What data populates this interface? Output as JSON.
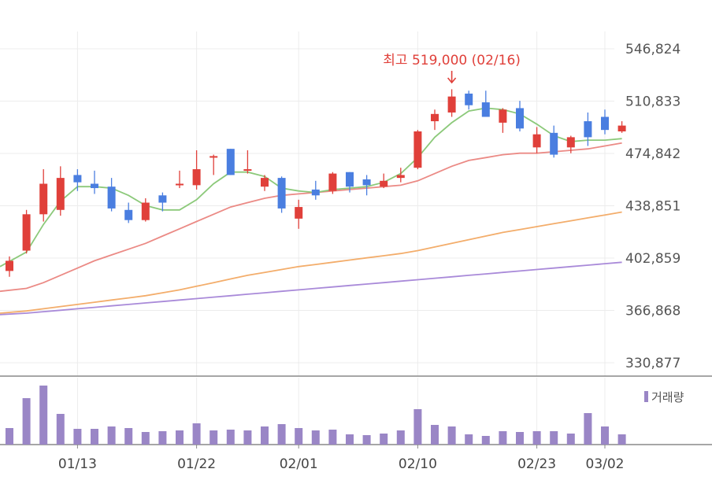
{
  "colors": {
    "up": "#e0403a",
    "down": "#4a7ee0",
    "ma5": "#8cc97a",
    "ma20": "#eb8a85",
    "ma60": "#f3ad6b",
    "ma120": "#a98ad9",
    "volume": "#9a86c6",
    "grid": "#ececec",
    "axis": "#888888"
  },
  "chart_data": {
    "type": "candlestick",
    "y_ticks": [
      "546,824",
      "510,833",
      "474,842",
      "438,851",
      "402,859",
      "366,868",
      "330,877"
    ],
    "y_tick_values": [
      546824,
      510833,
      474842,
      438851,
      402859,
      366868,
      330877
    ],
    "ylim": [
      326000,
      552000
    ],
    "x_ticks": [
      {
        "label": "01/13",
        "index": 4
      },
      {
        "label": "01/22",
        "index": 11
      },
      {
        "label": "02/01",
        "index": 17
      },
      {
        "label": "02/10",
        "index": 24
      },
      {
        "label": "02/23",
        "index": 31
      },
      {
        "label": "03/02",
        "index": 35
      }
    ],
    "annotation": {
      "text": "최고 519,000 (02/16)",
      "index": 26,
      "value": 519000
    },
    "volume_legend": "거래량",
    "candles": [
      {
        "o": 394000,
        "h": 404000,
        "l": 390000,
        "c": 401000
      },
      {
        "o": 408000,
        "h": 436000,
        "l": 406000,
        "c": 433000
      },
      {
        "o": 433000,
        "h": 464000,
        "l": 428000,
        "c": 454000
      },
      {
        "o": 436000,
        "h": 466000,
        "l": 432000,
        "c": 458000
      },
      {
        "o": 460000,
        "h": 464000,
        "l": 449000,
        "c": 455000
      },
      {
        "o": 454000,
        "h": 463000,
        "l": 447000,
        "c": 451000
      },
      {
        "o": 452000,
        "h": 458000,
        "l": 435000,
        "c": 437000
      },
      {
        "o": 436000,
        "h": 441000,
        "l": 427000,
        "c": 429000
      },
      {
        "o": 429000,
        "h": 444000,
        "l": 428000,
        "c": 441000
      },
      {
        "o": 446000,
        "h": 448000,
        "l": 435000,
        "c": 441000
      },
      {
        "o": 453000,
        "h": 463000,
        "l": 451000,
        "c": 454000
      },
      {
        "o": 453000,
        "h": 477000,
        "l": 450000,
        "c": 464000
      },
      {
        "o": 472000,
        "h": 474000,
        "l": 460000,
        "c": 473000
      },
      {
        "o": 478000,
        "h": 478000,
        "l": 460000,
        "c": 460000
      },
      {
        "o": 463000,
        "h": 477000,
        "l": 461000,
        "c": 464000
      },
      {
        "o": 452000,
        "h": 460000,
        "l": 449000,
        "c": 458000
      },
      {
        "o": 458000,
        "h": 459000,
        "l": 434000,
        "c": 437000
      },
      {
        "o": 430000,
        "h": 443000,
        "l": 423000,
        "c": 438000
      },
      {
        "o": 450000,
        "h": 456000,
        "l": 443000,
        "c": 446000
      },
      {
        "o": 449000,
        "h": 462000,
        "l": 447000,
        "c": 461000
      },
      {
        "o": 462000,
        "h": 462000,
        "l": 448000,
        "c": 452000
      },
      {
        "o": 457000,
        "h": 460000,
        "l": 446000,
        "c": 453000
      },
      {
        "o": 452000,
        "h": 461000,
        "l": 451000,
        "c": 456000
      },
      {
        "o": 458000,
        "h": 465000,
        "l": 455000,
        "c": 460000
      },
      {
        "o": 465000,
        "h": 491000,
        "l": 464000,
        "c": 490000
      },
      {
        "o": 497000,
        "h": 505000,
        "l": 491000,
        "c": 502000
      },
      {
        "o": 503000,
        "h": 519000,
        "l": 500000,
        "c": 514000
      },
      {
        "o": 516000,
        "h": 518000,
        "l": 505000,
        "c": 508000
      },
      {
        "o": 510000,
        "h": 518000,
        "l": 500000,
        "c": 500000
      },
      {
        "o": 496000,
        "h": 506000,
        "l": 489000,
        "c": 505000
      },
      {
        "o": 506000,
        "h": 511000,
        "l": 490000,
        "c": 492000
      },
      {
        "o": 479000,
        "h": 493000,
        "l": 475000,
        "c": 488000
      },
      {
        "o": 489000,
        "h": 494000,
        "l": 472000,
        "c": 474000
      },
      {
        "o": 479000,
        "h": 487000,
        "l": 475000,
        "c": 486000
      },
      {
        "o": 497000,
        "h": 503000,
        "l": 480000,
        "c": 486000
      },
      {
        "o": 500000,
        "h": 505000,
        "l": 488000,
        "c": 491000
      },
      {
        "o": 490000,
        "h": 497000,
        "l": 489000,
        "c": 494000
      }
    ],
    "ma5": [
      397000,
      407000,
      426000,
      442000,
      452000,
      452000,
      451000,
      446000,
      439000,
      436000,
      436000,
      443000,
      454000,
      462000,
      462000,
      459000,
      451000,
      449000,
      448000,
      450000,
      451000,
      452000,
      455000,
      461000,
      472000,
      486000,
      496000,
      504000,
      506000,
      505000,
      502000,
      495000,
      487000,
      483000,
      484000,
      484000,
      485000
    ],
    "ma20": [
      380000,
      382000,
      386000,
      391000,
      396000,
      401000,
      405000,
      409000,
      413000,
      418000,
      423000,
      428000,
      433000,
      438000,
      441000,
      444000,
      446000,
      447000,
      448000,
      449000,
      450000,
      451000,
      452000,
      453000,
      456000,
      461000,
      466000,
      470000,
      472000,
      474000,
      475000,
      475000,
      476000,
      477000,
      478000,
      480000,
      482000
    ],
    "ma60": [
      365000,
      366500,
      368000,
      369500,
      371000,
      372500,
      374000,
      375500,
      377000,
      379000,
      381000,
      383500,
      386000,
      388500,
      391000,
      393000,
      395000,
      397000,
      398500,
      400000,
      401500,
      403000,
      404500,
      406000,
      408000,
      410500,
      413000,
      415500,
      418000,
      420500,
      422500,
      424500,
      426500,
      428500,
      430500,
      432500,
      434500
    ],
    "ma120": [
      364000,
      365000,
      366000,
      367000,
      368000,
      369000,
      370000,
      371000,
      372000,
      373000,
      374000,
      375000,
      376000,
      377000,
      378000,
      379000,
      380000,
      381000,
      382000,
      383000,
      384000,
      385000,
      386000,
      387000,
      388000,
      389000,
      390000,
      391000,
      392000,
      393000,
      394000,
      395000,
      396000,
      397000,
      398000,
      399000,
      400000
    ],
    "volume": [
      21,
      59,
      75,
      39,
      20,
      20,
      23,
      21,
      16,
      17,
      18,
      27,
      18,
      19,
      18,
      23,
      26,
      21,
      18,
      19,
      13,
      12,
      14,
      18,
      45,
      25,
      23,
      13,
      11,
      17,
      16,
      17,
      17,
      14,
      40,
      23,
      13
    ]
  }
}
